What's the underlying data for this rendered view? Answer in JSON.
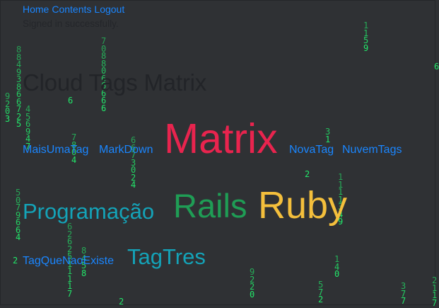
{
  "nav": {
    "links": [
      "Home",
      "Contents",
      "Logout"
    ]
  },
  "notice": "Signed in successfully.",
  "page_title": "Cloud Tags Matrix",
  "tags": [
    {
      "name": "MaisUmaTag",
      "color": "#1a86ff"
    },
    {
      "name": "MarkDown",
      "color": "#1a86ff"
    },
    {
      "name": "Matrix",
      "color": "#e8244e"
    },
    {
      "name": "NovaTag",
      "color": "#1a86ff"
    },
    {
      "name": "NuvemTags",
      "color": "#1a86ff"
    },
    {
      "name": "Programação",
      "color": "#14a3b8"
    },
    {
      "name": "Rails",
      "color": "#1f9d55"
    },
    {
      "name": "Ruby",
      "color": "#f4bf3c"
    },
    {
      "name": "TagQueNaoExiste",
      "color": "#1a86ff"
    },
    {
      "name": "TagTres",
      "color": "#14a3b8"
    }
  ],
  "matrix_rain": {
    "color": "#22e86a",
    "columns": [
      "88493866725",
      "9203",
      "456947",
      "7088066666",
      "6",
      "7804",
      "6673024",
      "5079664",
      "6262511117",
      "8458",
      "2",
      "1159",
      "31",
      "2",
      "1111349",
      "140",
      "9220",
      "572",
      "377",
      "2",
      "2117",
      "6"
    ]
  },
  "colors": {
    "background": "#2f3134",
    "link": "#1a86ff",
    "title": "#222428"
  }
}
